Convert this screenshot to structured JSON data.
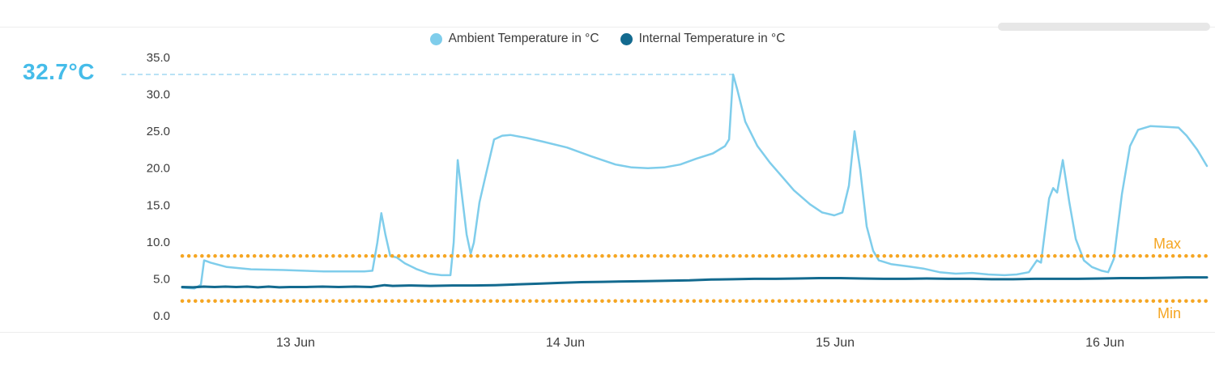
{
  "legend": {
    "items": [
      {
        "label": "Ambient Temperature in °C",
        "color": "#7FCDEB"
      },
      {
        "label": "Internal Temperature in °C",
        "color": "#136A8F"
      }
    ]
  },
  "annotation": {
    "label": "32.7°C",
    "value": 32.7,
    "t": 1.622,
    "color": "#45BCE9",
    "line_color": "#A9DCF3"
  },
  "chart_data": {
    "type": "line",
    "title": "",
    "xlabel": "",
    "ylabel": "",
    "grid": false,
    "legend_position": "top-center",
    "x_axis": {
      "unit": "days since 13 Jun 00:00",
      "min": -0.42,
      "max": 3.378,
      "ticks": [
        {
          "t": 0,
          "label": "13 Jun"
        },
        {
          "t": 1,
          "label": "14 Jun"
        },
        {
          "t": 2,
          "label": "15 Jun"
        },
        {
          "t": 3,
          "label": "16 Jun"
        }
      ]
    },
    "y_axis": {
      "unit": "°C",
      "min": 0,
      "max": 35,
      "ticks": [
        {
          "v": 0,
          "label": "0.0"
        },
        {
          "v": 5,
          "label": "5.0"
        },
        {
          "v": 10,
          "label": "10.0"
        },
        {
          "v": 15,
          "label": "15.0"
        },
        {
          "v": 20,
          "label": "20.0"
        },
        {
          "v": 25,
          "label": "25.0"
        },
        {
          "v": 30,
          "label": "30.0"
        },
        {
          "v": 35,
          "label": "35.0"
        }
      ]
    },
    "thresholds": [
      {
        "name": "max",
        "value": 8.1,
        "label": "Max",
        "color": "#F5A623"
      },
      {
        "name": "min",
        "value": 2.0,
        "label": "Min",
        "color": "#F5A623"
      }
    ],
    "series": [
      {
        "name": "Ambient Temperature in °C",
        "color": "#7FCDEB",
        "width": 2.5,
        "points": [
          [
            -0.42,
            3.8
          ],
          [
            -0.375,
            3.7
          ],
          [
            -0.351,
            4.2
          ],
          [
            -0.339,
            7.5
          ],
          [
            -0.33,
            7.4
          ],
          [
            -0.315,
            7.2
          ],
          [
            -0.255,
            6.6
          ],
          [
            -0.165,
            6.3
          ],
          [
            -0.045,
            6.2
          ],
          [
            0.105,
            6.0
          ],
          [
            0.255,
            6.0
          ],
          [
            0.285,
            6.1
          ],
          [
            0.303,
            9.9
          ],
          [
            0.318,
            13.9
          ],
          [
            0.333,
            11.0
          ],
          [
            0.351,
            8.1
          ],
          [
            0.375,
            7.9
          ],
          [
            0.405,
            7.1
          ],
          [
            0.45,
            6.3
          ],
          [
            0.495,
            5.7
          ],
          [
            0.541,
            5.5
          ],
          [
            0.574,
            5.5
          ],
          [
            0.586,
            9.9
          ],
          [
            0.601,
            21.1
          ],
          [
            0.616,
            16.5
          ],
          [
            0.634,
            11.0
          ],
          [
            0.649,
            8.4
          ],
          [
            0.661,
            9.9
          ],
          [
            0.682,
            15.4
          ],
          [
            0.706,
            19.2
          ],
          [
            0.736,
            23.9
          ],
          [
            0.766,
            24.4
          ],
          [
            0.796,
            24.5
          ],
          [
            0.856,
            24.1
          ],
          [
            0.916,
            23.6
          ],
          [
            1.006,
            22.8
          ],
          [
            1.096,
            21.6
          ],
          [
            1.186,
            20.5
          ],
          [
            1.246,
            20.1
          ],
          [
            1.306,
            20.0
          ],
          [
            1.366,
            20.1
          ],
          [
            1.426,
            20.5
          ],
          [
            1.486,
            21.3
          ],
          [
            1.547,
            22.0
          ],
          [
            1.592,
            23.0
          ],
          [
            1.607,
            23.9
          ],
          [
            1.622,
            32.7
          ],
          [
            1.637,
            30.7
          ],
          [
            1.667,
            26.3
          ],
          [
            1.712,
            23.0
          ],
          [
            1.757,
            20.8
          ],
          [
            1.802,
            18.9
          ],
          [
            1.847,
            17.0
          ],
          [
            1.907,
            15.1
          ],
          [
            1.952,
            14.0
          ],
          [
            1.997,
            13.6
          ],
          [
            2.027,
            14.0
          ],
          [
            2.051,
            17.6
          ],
          [
            2.072,
            25.0
          ],
          [
            2.093,
            19.8
          ],
          [
            2.117,
            12.1
          ],
          [
            2.141,
            8.8
          ],
          [
            2.162,
            7.5
          ],
          [
            2.207,
            7.0
          ],
          [
            2.267,
            6.7
          ],
          [
            2.327,
            6.4
          ],
          [
            2.387,
            5.9
          ],
          [
            2.447,
            5.7
          ],
          [
            2.508,
            5.8
          ],
          [
            2.568,
            5.6
          ],
          [
            2.628,
            5.5
          ],
          [
            2.673,
            5.6
          ],
          [
            2.718,
            5.9
          ],
          [
            2.748,
            7.5
          ],
          [
            2.763,
            7.2
          ],
          [
            2.793,
            15.9
          ],
          [
            2.808,
            17.3
          ],
          [
            2.823,
            16.7
          ],
          [
            2.844,
            21.1
          ],
          [
            2.868,
            15.4
          ],
          [
            2.892,
            10.4
          ],
          [
            2.922,
            7.5
          ],
          [
            2.952,
            6.6
          ],
          [
            2.988,
            6.1
          ],
          [
            3.012,
            5.9
          ],
          [
            3.033,
            7.7
          ],
          [
            3.063,
            16.5
          ],
          [
            3.093,
            23.0
          ],
          [
            3.123,
            25.2
          ],
          [
            3.168,
            25.7
          ],
          [
            3.228,
            25.6
          ],
          [
            3.273,
            25.5
          ],
          [
            3.303,
            24.4
          ],
          [
            3.342,
            22.5
          ],
          [
            3.378,
            20.3
          ]
        ]
      },
      {
        "name": "Internal Temperature in °C",
        "color": "#136A8F",
        "width": 3,
        "points": [
          [
            -0.42,
            3.9
          ],
          [
            -0.38,
            3.85
          ],
          [
            -0.34,
            3.95
          ],
          [
            -0.3,
            3.9
          ],
          [
            -0.26,
            3.95
          ],
          [
            -0.22,
            3.9
          ],
          [
            -0.18,
            3.95
          ],
          [
            -0.14,
            3.85
          ],
          [
            -0.1,
            3.95
          ],
          [
            -0.06,
            3.85
          ],
          [
            -0.02,
            3.9
          ],
          [
            0.04,
            3.9
          ],
          [
            0.1,
            3.95
          ],
          [
            0.16,
            3.9
          ],
          [
            0.22,
            3.95
          ],
          [
            0.28,
            3.9
          ],
          [
            0.33,
            4.15
          ],
          [
            0.36,
            4.05
          ],
          [
            0.42,
            4.1
          ],
          [
            0.5,
            4.05
          ],
          [
            0.58,
            4.1
          ],
          [
            0.66,
            4.1
          ],
          [
            0.74,
            4.15
          ],
          [
            0.82,
            4.25
          ],
          [
            0.9,
            4.35
          ],
          [
            0.98,
            4.45
          ],
          [
            1.06,
            4.55
          ],
          [
            1.14,
            4.6
          ],
          [
            1.22,
            4.65
          ],
          [
            1.3,
            4.7
          ],
          [
            1.38,
            4.75
          ],
          [
            1.46,
            4.8
          ],
          [
            1.54,
            4.9
          ],
          [
            1.62,
            4.95
          ],
          [
            1.7,
            5.0
          ],
          [
            1.78,
            5.0
          ],
          [
            1.86,
            5.05
          ],
          [
            1.94,
            5.1
          ],
          [
            2.02,
            5.1
          ],
          [
            2.1,
            5.05
          ],
          [
            2.18,
            5.0
          ],
          [
            2.26,
            5.0
          ],
          [
            2.34,
            5.05
          ],
          [
            2.42,
            5.0
          ],
          [
            2.5,
            5.0
          ],
          [
            2.58,
            4.95
          ],
          [
            2.66,
            4.95
          ],
          [
            2.74,
            5.0
          ],
          [
            2.82,
            5.0
          ],
          [
            2.9,
            5.0
          ],
          [
            2.98,
            5.05
          ],
          [
            3.06,
            5.1
          ],
          [
            3.14,
            5.1
          ],
          [
            3.22,
            5.15
          ],
          [
            3.3,
            5.2
          ],
          [
            3.378,
            5.2
          ]
        ]
      }
    ]
  }
}
